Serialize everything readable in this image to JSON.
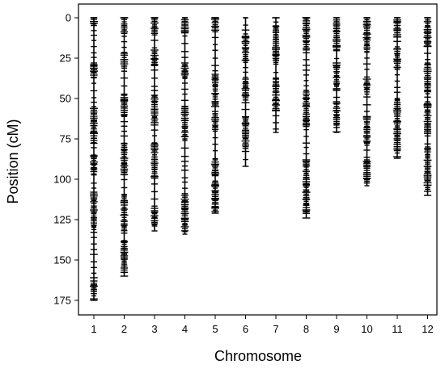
{
  "chart_data": {
    "type": "genetic-map",
    "title": "",
    "xlabel": "Chromosome",
    "ylabel": "Position (cM)",
    "ylim": [
      0,
      180
    ],
    "y_inverted": true,
    "y_ticks": [
      0,
      25,
      50,
      75,
      100,
      125,
      150,
      175
    ],
    "grid": false,
    "legend": "none",
    "marker_color": "#000000",
    "chromosomes": [
      {
        "name": "1",
        "start": 0,
        "end": 175,
        "marker_density": "dense",
        "dense_ranges": [
          [
            0,
            5
          ],
          [
            28,
            38
          ],
          [
            55,
            78
          ],
          [
            85,
            97
          ],
          [
            108,
            132
          ],
          [
            163,
            173
          ]
        ]
      },
      {
        "name": "2",
        "start": 0,
        "end": 160,
        "marker_density": "dense",
        "dense_ranges": [
          [
            0,
            10
          ],
          [
            22,
            32
          ],
          [
            48,
            62
          ],
          [
            78,
            98
          ],
          [
            110,
            132
          ],
          [
            138,
            158
          ]
        ]
      },
      {
        "name": "3",
        "start": 0,
        "end": 132,
        "marker_density": "dense",
        "dense_ranges": [
          [
            0,
            10
          ],
          [
            20,
            30
          ],
          [
            48,
            65
          ],
          [
            78,
            100
          ],
          [
            118,
            130
          ]
        ]
      },
      {
        "name": "4",
        "start": 0,
        "end": 134,
        "marker_density": "dense",
        "dense_ranges": [
          [
            0,
            10
          ],
          [
            28,
            38
          ],
          [
            55,
            75
          ],
          [
            110,
            132
          ]
        ]
      },
      {
        "name": "5",
        "start": 0,
        "end": 121,
        "marker_density": "dense",
        "dense_ranges": [
          [
            0,
            10
          ],
          [
            35,
            55
          ],
          [
            58,
            70
          ],
          [
            88,
            98
          ],
          [
            102,
            120
          ]
        ]
      },
      {
        "name": "6",
        "start": 0,
        "end": 92,
        "marker_density": "dense",
        "dense_ranges": [
          [
            10,
            28
          ],
          [
            38,
            52
          ],
          [
            62,
            82
          ]
        ]
      },
      {
        "name": "7",
        "start": 0,
        "end": 71,
        "marker_density": "dense",
        "dense_ranges": [
          [
            5,
            28
          ],
          [
            38,
            58
          ]
        ]
      },
      {
        "name": "8",
        "start": 0,
        "end": 124,
        "marker_density": "dense",
        "dense_ranges": [
          [
            0,
            20
          ],
          [
            45,
            68
          ],
          [
            88,
            122
          ]
        ]
      },
      {
        "name": "9",
        "start": 0,
        "end": 71,
        "marker_density": "dense",
        "dense_ranges": [
          [
            0,
            20
          ],
          [
            28,
            45
          ],
          [
            52,
            68
          ]
        ]
      },
      {
        "name": "10",
        "start": 0,
        "end": 104,
        "marker_density": "dense",
        "dense_ranges": [
          [
            0,
            22
          ],
          [
            38,
            48
          ],
          [
            62,
            80
          ],
          [
            88,
            102
          ]
        ]
      },
      {
        "name": "11",
        "start": 0,
        "end": 87,
        "marker_density": "dense",
        "dense_ranges": [
          [
            0,
            12
          ],
          [
            18,
            32
          ],
          [
            50,
            85
          ]
        ]
      },
      {
        "name": "12",
        "start": 0,
        "end": 110,
        "marker_density": "dense",
        "dense_ranges": [
          [
            0,
            18
          ],
          [
            28,
            48
          ],
          [
            52,
            72
          ],
          [
            80,
            108
          ]
        ]
      }
    ]
  }
}
